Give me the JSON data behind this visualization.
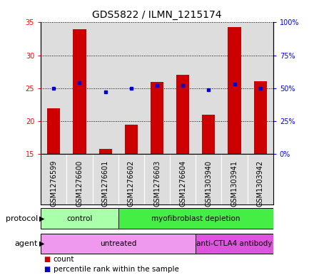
{
  "title": "GDS5822 / ILMN_1215174",
  "samples": [
    "GSM1276599",
    "GSM1276600",
    "GSM1276601",
    "GSM1276602",
    "GSM1276603",
    "GSM1276604",
    "GSM1303940",
    "GSM1303941",
    "GSM1303942"
  ],
  "counts": [
    22.0,
    34.0,
    15.8,
    19.5,
    26.0,
    27.0,
    21.0,
    34.3,
    26.1
  ],
  "percentile_ranks": [
    50,
    54,
    47,
    50,
    52,
    52,
    49,
    53,
    50
  ],
  "ylim_left": [
    15,
    35
  ],
  "ylim_right": [
    0,
    100
  ],
  "yticks_left": [
    15,
    20,
    25,
    30,
    35
  ],
  "yticks_right": [
    0,
    25,
    50,
    75,
    100
  ],
  "ytick_labels_right": [
    "0%",
    "25%",
    "50%",
    "75%",
    "100%"
  ],
  "protocol_groups": [
    {
      "label": "control",
      "start": 0,
      "end": 3,
      "color": "#AAFFAA"
    },
    {
      "label": "myofibroblast depletion",
      "start": 3,
      "end": 9,
      "color": "#44EE44"
    }
  ],
  "agent_groups": [
    {
      "label": "untreated",
      "start": 0,
      "end": 6,
      "color": "#EE99EE"
    },
    {
      "label": "anti-CTLA4 antibody",
      "start": 6,
      "end": 9,
      "color": "#DD55DD"
    }
  ],
  "bar_color": "#CC0000",
  "dot_color": "#0000CC",
  "bar_width": 0.5,
  "bg_color": "#DDDDDD",
  "title_fontsize": 10,
  "tick_fontsize": 7,
  "label_fontsize": 8,
  "annotation_fontsize": 7.5,
  "protocol_label": "protocol",
  "agent_label": "agent"
}
